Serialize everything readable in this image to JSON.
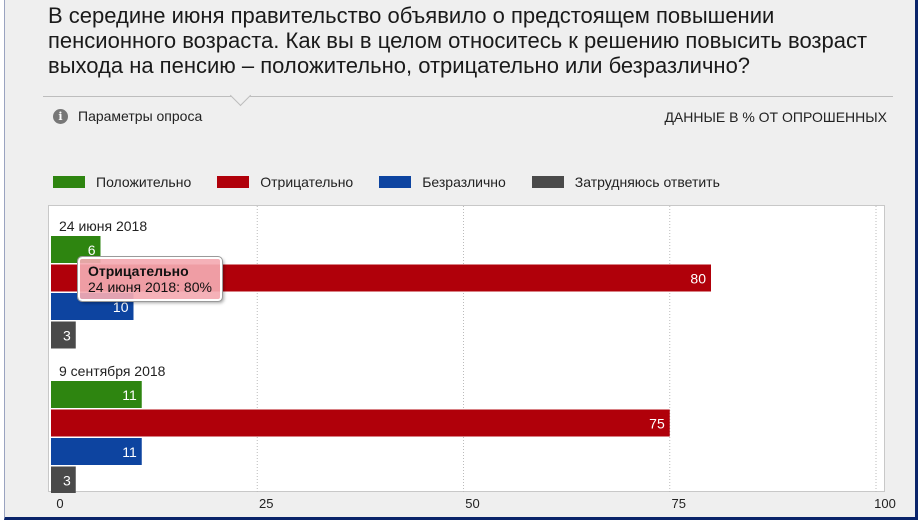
{
  "title": "В середине июня правительство объявило о предстоящем повышении пенсионного возраста. Как вы в целом относитесь к решению повысить возраст выхода на пенсию – положительно, отрицательно или безразлично?",
  "params_label": "Параметры опроса",
  "units_label": "ДАННЫЕ В % ОТ ОПРОШЕННЫХ",
  "tooltip": {
    "series": "Отрицательно",
    "text": "24 июня 2018: 80%"
  },
  "chart_data": {
    "type": "bar",
    "orientation": "horizontal",
    "categories": [
      "24 июня 2018",
      "9 сентября 2018"
    ],
    "series": [
      {
        "name": "Положительно",
        "color": "#2e8510",
        "values": [
          6,
          11
        ]
      },
      {
        "name": "Отрицательно",
        "color": "#b0000a",
        "values": [
          80,
          75
        ]
      },
      {
        "name": "Безразлично",
        "color": "#0d44a0",
        "values": [
          10,
          11
        ]
      },
      {
        "name": "Затрудняюсь ответить",
        "color": "#4a4a4a",
        "values": [
          3,
          3
        ]
      }
    ],
    "xlim": [
      0,
      100
    ],
    "xticks": [
      0,
      25,
      50,
      75,
      100
    ],
    "grid": true,
    "legend": "top-left"
  }
}
